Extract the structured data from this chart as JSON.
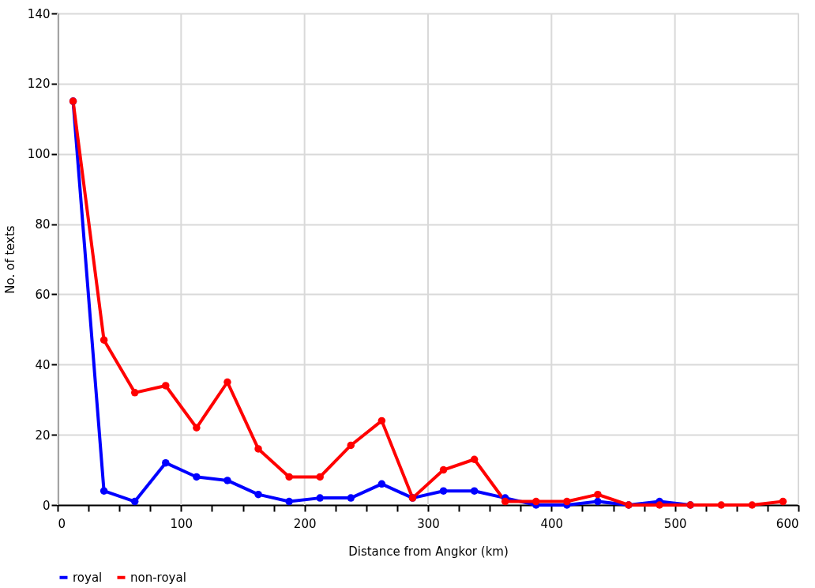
{
  "chart_data": {
    "type": "line",
    "xlabel": "Distance from Angkor (km)",
    "ylabel": "No. of texts",
    "xlim": [
      0,
      600
    ],
    "ylim": [
      0,
      140
    ],
    "xticks": [
      0,
      {
        "value": 25,
        "label": null
      },
      {
        "value": 50,
        "label": null
      },
      {
        "value": 75,
        "label": null
      },
      100,
      {
        "value": 125,
        "label": null
      },
      {
        "value": 150,
        "label": null
      },
      {
        "value": 175,
        "label": null
      },
      200,
      {
        "value": 225,
        "label": null
      },
      {
        "value": 250,
        "label": null
      },
      {
        "value": 275,
        "label": null
      },
      300,
      {
        "value": 325,
        "label": null
      },
      {
        "value": 350,
        "label": null
      },
      {
        "value": 375,
        "label": null
      },
      400,
      {
        "value": 425,
        "label": null
      },
      {
        "value": 450,
        "label": null
      },
      {
        "value": 475,
        "label": null
      },
      500,
      {
        "value": 525,
        "label": null
      },
      {
        "value": 550,
        "label": null
      },
      {
        "value": 575,
        "label": null
      },
      600
    ],
    "yticks": [
      0,
      20,
      40,
      60,
      80,
      100,
      120,
      140
    ],
    "grid": true,
    "legend": "bottom",
    "marker": "circle",
    "line_style": "solid",
    "series": [
      {
        "name": "royal",
        "color": "#0000ff",
        "x": [
          12.5,
          37.5,
          62.5,
          87.5,
          112.5,
          137.5,
          162.5,
          187.5,
          212.5,
          237.5,
          262.5,
          287.5,
          312.5,
          337.5,
          362.5,
          387.5,
          412.5,
          437.5,
          462.5,
          487.5,
          512.5
        ],
        "values": [
          115,
          4,
          1,
          12,
          8,
          7,
          3,
          1,
          2,
          2,
          6,
          2,
          4,
          4,
          2,
          0,
          0,
          1,
          0,
          1,
          0
        ]
      },
      {
        "name": "non-royal",
        "color": "#ff0000",
        "x": [
          12.5,
          37.5,
          62.5,
          87.5,
          112.5,
          137.5,
          162.5,
          187.5,
          212.5,
          237.5,
          262.5,
          287.5,
          312.5,
          337.5,
          362.5,
          387.5,
          412.5,
          437.5,
          462.5,
          487.5,
          512.5,
          537.5,
          562.5,
          587.5
        ],
        "values": [
          115,
          47,
          32,
          34,
          22,
          35,
          16,
          8,
          8,
          17,
          24,
          2,
          10,
          13,
          1,
          1,
          1,
          3,
          0,
          0,
          0,
          0,
          0,
          1
        ]
      }
    ]
  }
}
